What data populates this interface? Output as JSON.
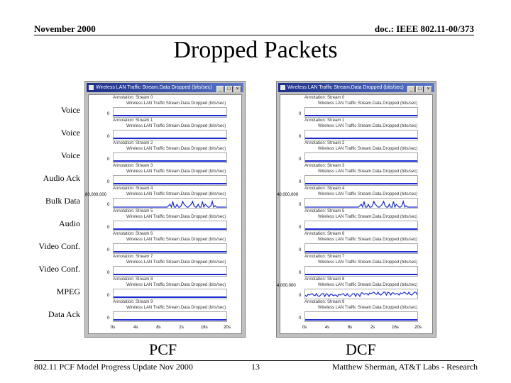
{
  "header": {
    "left": "November 2000",
    "right": "doc.: IEEE 802.11-00/373"
  },
  "title": "Dropped Packets",
  "row_labels": [
    "Voice",
    "Voice",
    "Voice",
    "Audio Ack",
    "Bulk Data",
    "Audio",
    "Video Conf.",
    "Video Conf.",
    "MPEG",
    "Data Ack"
  ],
  "windows": [
    {
      "title": "Wireless LAN Traffic Stream.Data Dropped (bits/sec)",
      "caption": "PCF",
      "panels": [
        {
          "annotation": "Annotation: Stream 0",
          "series": "Wireless LAN Traffic Stream.Data Dropped (bits/sec)",
          "ymax": "",
          "trace": "flat"
        },
        {
          "annotation": "Annotation: Stream 1",
          "series": "Wireless LAN Traffic Stream.Data Dropped (bits/sec)",
          "ymax": "",
          "trace": "flat"
        },
        {
          "annotation": "Annotation: Stream 2",
          "series": "Wireless LAN Traffic Stream.Data Dropped (bits/sec)",
          "ymax": "",
          "trace": "flat"
        },
        {
          "annotation": "Annotation: Stream 3",
          "series": "Wireless LAN Traffic Stream.Data Dropped (bits/sec)",
          "ymax": "",
          "trace": "flat"
        },
        {
          "annotation": "Annotation: Stream 4",
          "series": "Wireless LAN Traffic Stream.Data Dropped (bits/sec)",
          "ymax": "80,000,000",
          "trace": "spikes"
        },
        {
          "annotation": "Annotation: Stream 5",
          "series": "Wireless LAN Traffic Stream.Data Dropped (bits/sec)",
          "ymax": "",
          "trace": "flat"
        },
        {
          "annotation": "Annotation: Stream 6",
          "series": "Wireless LAN Traffic Stream.Data Dropped (bits/sec)",
          "ymax": "",
          "trace": "flat"
        },
        {
          "annotation": "Annotation: Stream 7",
          "series": "Wireless LAN Traffic Stream.Data Dropped (bits/sec)",
          "ymax": "",
          "trace": "flat"
        },
        {
          "annotation": "Annotation: Stream 8",
          "series": "Wireless LAN Traffic Stream.Data Dropped (bits/sec)",
          "ymax": "",
          "trace": "flat"
        },
        {
          "annotation": "Annotation: Stream 9",
          "series": "Wireless LAN Traffic Stream.Data Dropped (bits/sec)",
          "ymax": "",
          "trace": "flat"
        }
      ],
      "x_ticks": [
        "0s",
        "4s",
        "8s",
        "2s",
        "16s",
        "20s"
      ],
      "zero_label": "0"
    },
    {
      "title": "Wireless LAN Traffic Stream.Data Dropped (bits/sec)",
      "caption": "DCF",
      "panels": [
        {
          "annotation": "Annotation: Stream 0",
          "series": "Wireless LAN Traffic Stream.Data Dropped (bits/sec)",
          "ymax": "",
          "trace": "flat"
        },
        {
          "annotation": "Annotation: Stream 1",
          "series": "Wireless LAN Traffic Stream.Data Dropped (bits/sec)",
          "ymax": "",
          "trace": "flat"
        },
        {
          "annotation": "Annotation: Stream 2",
          "series": "Wireless LAN Traffic Stream.Data Dropped (bits/sec)",
          "ymax": "",
          "trace": "flat"
        },
        {
          "annotation": "Annotation: Stream 3",
          "series": "Wireless LAN Traffic Stream.Data Dropped (bits/sec)",
          "ymax": "",
          "trace": "flat"
        },
        {
          "annotation": "Annotation: Stream 4",
          "series": "Wireless LAN Traffic Stream.Data Dropped (bits/sec)",
          "ymax": "40,000,000",
          "trace": "spikes"
        },
        {
          "annotation": "Annotation: Stream 5",
          "series": "Wireless LAN Traffic Stream.Data Dropped (bits/sec)",
          "ymax": "",
          "trace": "flat"
        },
        {
          "annotation": "Annotation: Stream 6",
          "series": "Wireless LAN Traffic Stream.Data Dropped (bits/sec)",
          "ymax": "",
          "trace": "flat"
        },
        {
          "annotation": "Annotation: Stream 7",
          "series": "Wireless LAN Traffic Stream.Data Dropped (bits/sec)",
          "ymax": "",
          "trace": "flat"
        },
        {
          "annotation": "Annotation: Stream 8",
          "series": "Wireless LAN Traffic Stream.Data Dropped (bits/sec)",
          "ymax": "4,000,000",
          "trace": "noise"
        },
        {
          "annotation": "Annotation: Stream 9",
          "series": "Wireless LAN Traffic Stream.Data Dropped (bits/sec)",
          "ymax": "",
          "trace": "flat"
        }
      ],
      "x_ticks": [
        "0s",
        "4s",
        "8s",
        "2s",
        "16s",
        "20s"
      ],
      "zero_label": "0"
    }
  ],
  "footer": {
    "left": "802.11 PCF Model Progress Update Nov 2000",
    "page": "13",
    "right": "Matthew Sherman, AT&T Labs - Research"
  },
  "colors": {
    "trace": "#1a2ad0",
    "titlebar": "#1c2f8a",
    "window": "#c0c0c0"
  },
  "icons": [
    "minimize-icon",
    "maximize-icon",
    "close-icon",
    "app-icon"
  ]
}
